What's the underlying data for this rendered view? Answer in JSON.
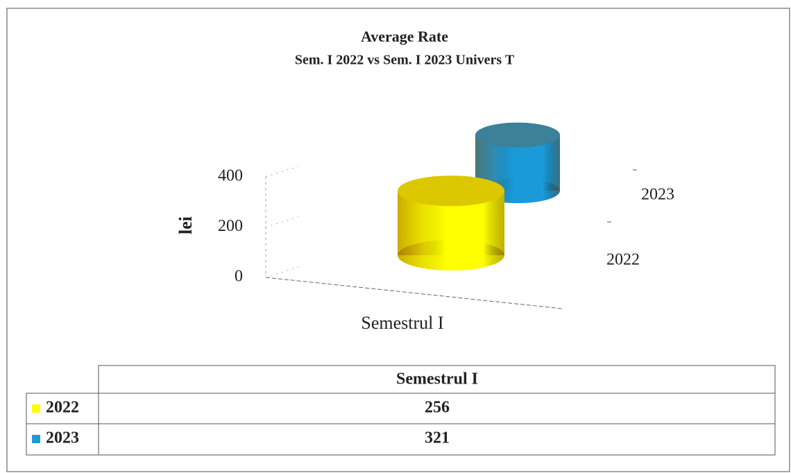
{
  "chart_data": {
    "type": "bar3d",
    "title": "Average Rate",
    "subtitle": "Sem. I 2022 vs Sem. I 2023 Univers T",
    "y_label": "lei",
    "categories": [
      "Semestrul I"
    ],
    "series": [
      {
        "name": "2022",
        "color": "#ffff00",
        "values": [
          256
        ]
      },
      {
        "name": "2023",
        "color": "#1a9ad8",
        "values": [
          321
        ]
      }
    ],
    "ylim": [
      0,
      400
    ],
    "yticks": [
      0,
      200,
      400
    ],
    "data_table": true
  }
}
